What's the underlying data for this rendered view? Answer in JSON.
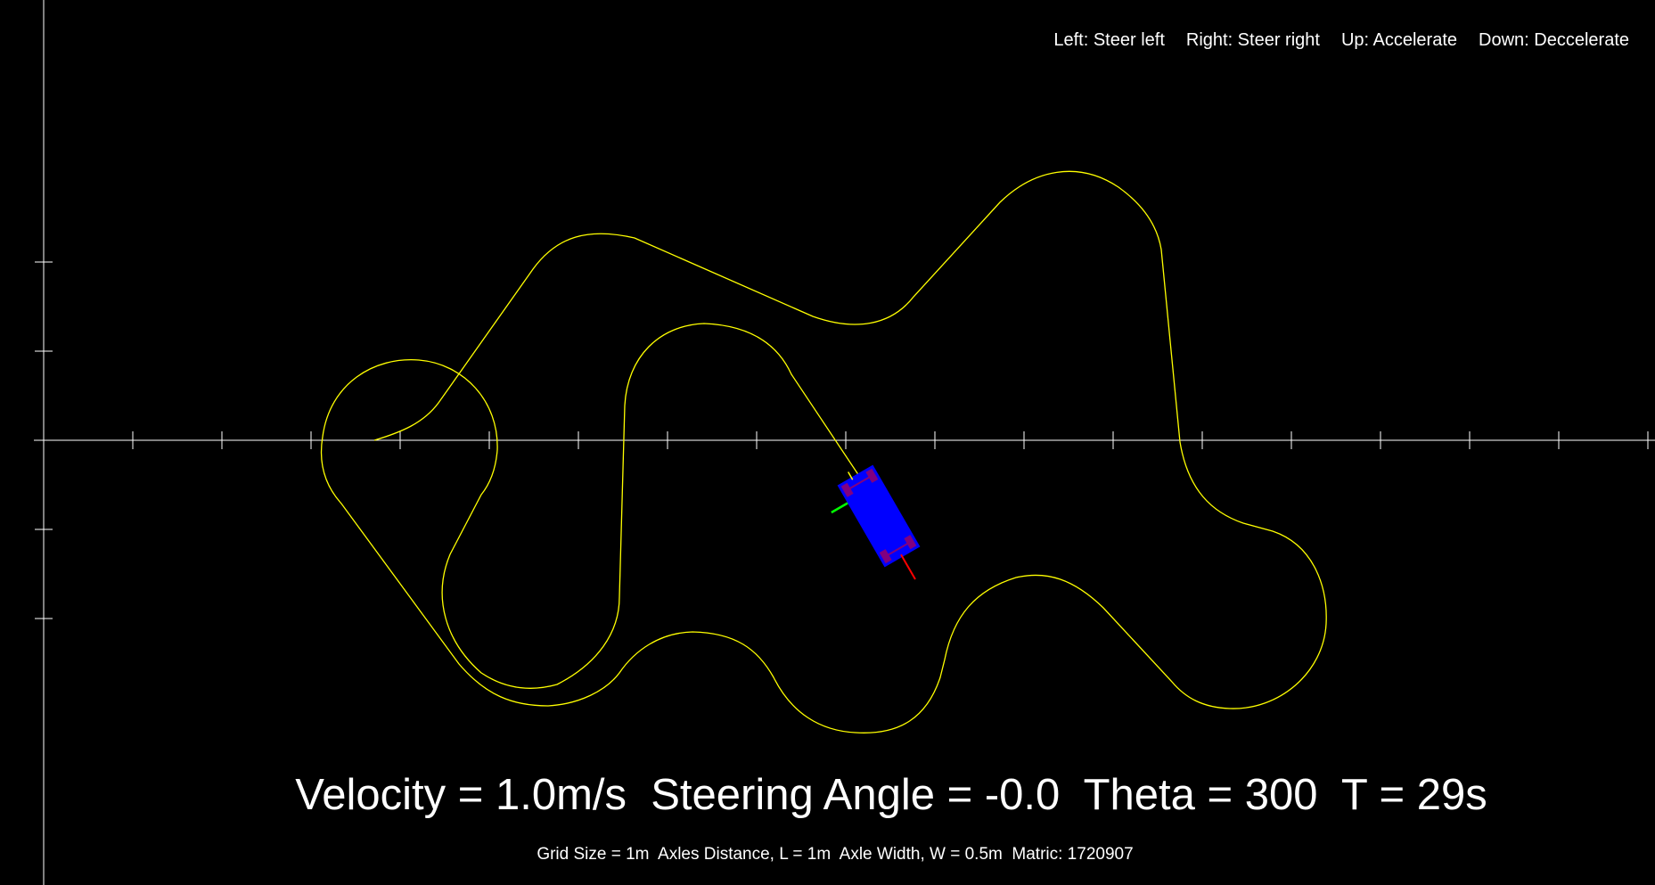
{
  "controls": [
    {
      "key": "Left",
      "action": "Steer left",
      "text": "Left: Steer left"
    },
    {
      "key": "Right",
      "action": "Steer right",
      "text": "Right: Steer right"
    },
    {
      "key": "Up",
      "action": "Accelerate",
      "text": "Up: Accelerate"
    },
    {
      "key": "Down",
      "action": "Deccelerate",
      "text": "Down: Deccelerate"
    }
  ],
  "status": {
    "velocity": "1.0m/s",
    "steering_angle": "-0.0",
    "theta": "300",
    "time": "29s",
    "text": "Velocity = 1.0m/s  Steering Angle = -0.0  Theta = 300  T = 29s"
  },
  "info": {
    "grid_size": "1m",
    "axles_distance": "1m",
    "axle_width": "0.5m",
    "matric": "1720907",
    "text": "Grid Size = 1m  Axles Distance, L = 1m  Axle Width, W = 0.5m  Matric: 1720907"
  },
  "colors": {
    "background": "#000000",
    "axes": "#ffffff",
    "path": "#ffff00",
    "car_body": "#0000ff",
    "wheel": "#800080",
    "heading_vector": "#ff0000",
    "lateral_vector": "#00ff00",
    "text": "#ffffff"
  }
}
